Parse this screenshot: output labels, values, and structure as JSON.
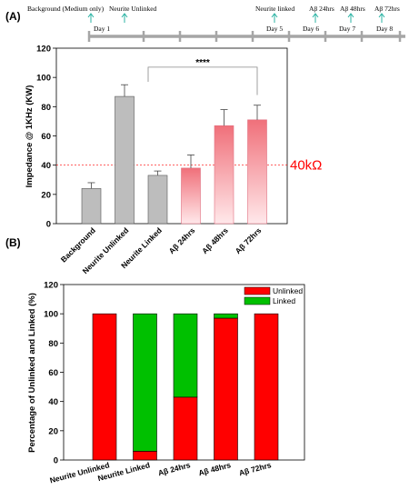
{
  "timeline": {
    "labels_top": [
      {
        "text": "Background (Medium only)"
      },
      {
        "text": "Neurite Unlinked"
      },
      {
        "text": "Neurite linked"
      },
      {
        "text": "Aβ 24hrs"
      },
      {
        "text": "Aβ 48hrs"
      },
      {
        "text": "Aβ 72hrs"
      }
    ],
    "day_labels": [
      "Day 1",
      "Day 5",
      "Day 6",
      "Day 7",
      "Day 8"
    ],
    "colors": {
      "line": "#a6a6a6",
      "arrow": "#2bb3a3"
    }
  },
  "chart_data": [
    {
      "panel_label": "(A)",
      "type": "bar",
      "categories": [
        "Background",
        "Neurite Unlinked",
        "Neurite Linked",
        "Aβ   24hrs",
        "Aβ   48hrs",
        "Aβ   72hrs"
      ],
      "values": [
        24,
        87,
        33,
        38,
        67,
        71
      ],
      "errors": [
        4,
        8,
        3,
        9,
        11,
        10
      ],
      "ylabel": "Impedance @ 1KHz (KW)",
      "ylim": [
        0,
        120
      ],
      "yticks": [
        0,
        20,
        40,
        60,
        80,
        100,
        120
      ],
      "threshold": {
        "value": 40,
        "label": "40kΩ",
        "color": "#ff0000"
      },
      "significance": {
        "label": "****",
        "from": 2,
        "to": 5
      },
      "colors": {
        "gray": "#bdbdbd",
        "red_top": "#f0707a",
        "red_bottom": "#ffe8ea"
      }
    },
    {
      "panel_label": "(B)",
      "type": "bar",
      "stacked": true,
      "categories": [
        "Neurite Unlinked",
        "Neurite Linked",
        "Aβ  24hrs",
        "Aβ  48hrs",
        "Aβ  72hrs"
      ],
      "series": [
        {
          "name": "Unlinked",
          "values": [
            100,
            6,
            43,
            97,
            100
          ],
          "color": "#ff0000"
        },
        {
          "name": "Linked",
          "values": [
            0,
            94,
            57,
            3,
            0
          ],
          "color": "#00c000"
        }
      ],
      "ylabel": "Percentage of Unlinked and Linked (%)",
      "ylim": [
        0,
        120
      ],
      "yticks": [
        0,
        20,
        40,
        60,
        80,
        100,
        120
      ],
      "legend_position": "top-right"
    }
  ]
}
